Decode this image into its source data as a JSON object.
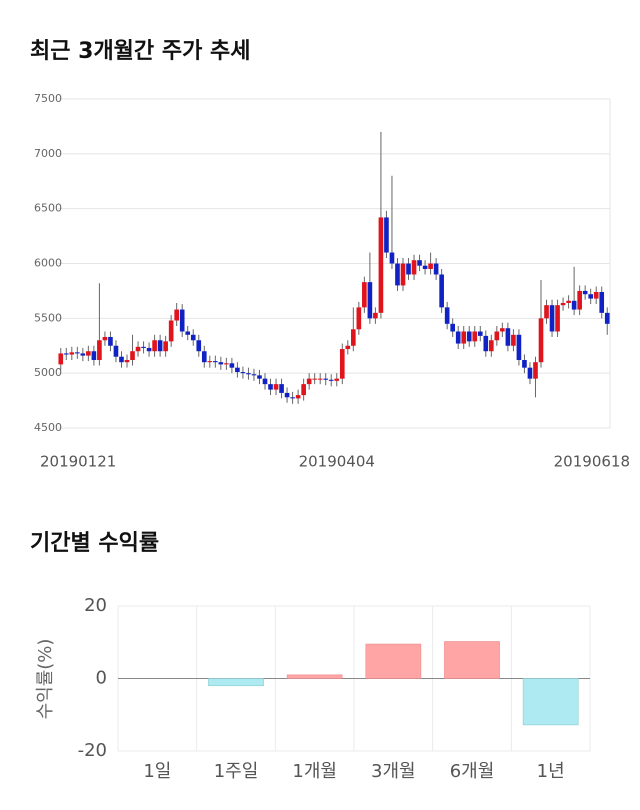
{
  "chart_data": [
    {
      "type": "candlestick",
      "title": "최근 3개월간 주가 추세",
      "categories": [
        "20190121",
        null,
        null,
        null,
        null,
        null,
        null,
        null,
        null,
        null,
        null,
        null,
        null,
        null,
        null,
        null,
        null,
        null,
        null,
        null,
        null,
        null,
        null,
        null,
        null,
        null,
        null,
        null,
        null,
        null,
        null,
        null,
        null,
        null,
        null,
        null,
        null,
        null,
        null,
        null,
        null,
        null,
        null,
        null,
        null,
        null,
        null,
        null,
        null,
        null,
        "20190404",
        null,
        null,
        null,
        null,
        null,
        null,
        null,
        null,
        null,
        null,
        null,
        null,
        null,
        null,
        null,
        null,
        null,
        null,
        null,
        null,
        null,
        null,
        null,
        null,
        null,
        null,
        null,
        null,
        null,
        null,
        null,
        null,
        null,
        null,
        null,
        null,
        null,
        null,
        null,
        null,
        null,
        null,
        null,
        null,
        null,
        null,
        null,
        null,
        "20190618"
      ],
      "open": [
        5080,
        5180,
        5170,
        5190,
        5180,
        5160,
        5200,
        5120,
        5300,
        5330,
        5250,
        5150,
        5100,
        5120,
        5200,
        5240,
        5230,
        5200,
        5300,
        5200,
        5290,
        5480,
        5580,
        5380,
        5350,
        5300,
        5200,
        5100,
        5110,
        5100,
        5080,
        5090,
        5050,
        5010,
        5000,
        4990,
        4980,
        4950,
        4900,
        4850,
        4900,
        4820,
        4780,
        4770,
        4800,
        4900,
        4950,
        4950,
        4950,
        4940,
        4930,
        4950,
        5220,
        5250,
        5400,
        5600,
        5830,
        5500,
        5550,
        6420,
        6100,
        6000,
        5800,
        6000,
        5900,
        6030,
        5980,
        5950,
        6000,
        5900,
        5600,
        5450,
        5380,
        5270,
        5380,
        5290,
        5380,
        5340,
        5200,
        5300,
        5380,
        5410,
        5250,
        5350,
        5120,
        5050,
        4950,
        5100,
        5500,
        5620,
        5380,
        5620,
        5640,
        5660,
        5580,
        5750,
        5720,
        5680,
        5740,
        5550
      ],
      "high": [
        5230,
        5230,
        5240,
        5240,
        5230,
        5250,
        5250,
        5820,
        5380,
        5380,
        5300,
        5200,
        5170,
        5350,
        5290,
        5290,
        5280,
        5350,
        5350,
        5340,
        5530,
        5640,
        5630,
        5430,
        5400,
        5350,
        5250,
        5160,
        5160,
        5150,
        5140,
        5140,
        5100,
        5060,
        5050,
        5040,
        5030,
        5000,
        4950,
        4950,
        4950,
        4870,
        4830,
        4850,
        4950,
        5000,
        5000,
        5000,
        5000,
        4990,
        5000,
        5270,
        5300,
        5600,
        5650,
        5880,
        6100,
        5600,
        7200,
        6480,
        6800,
        6050,
        6050,
        6050,
        6080,
        6080,
        6030,
        6100,
        6050,
        5950,
        5650,
        5500,
        5430,
        5430,
        5430,
        5430,
        5430,
        5390,
        5350,
        5430,
        5460,
        5460,
        5400,
        5400,
        5170,
        5100,
        5150,
        5850,
        5670,
        5670,
        5670,
        5690,
        5710,
        5970,
        5800,
        5800,
        5770,
        5790,
        5790,
        5600
      ],
      "low": [
        5030,
        5120,
        5120,
        5130,
        5110,
        5110,
        5070,
        5070,
        5250,
        5200,
        5100,
        5050,
        5050,
        5070,
        5150,
        5180,
        5150,
        5150,
        5150,
        5150,
        5240,
        5430,
        5330,
        5300,
        5250,
        5150,
        5050,
        5050,
        5050,
        5030,
        5030,
        5000,
        4960,
        4950,
        4940,
        4930,
        4900,
        4850,
        4800,
        4800,
        4770,
        4730,
        4720,
        4720,
        4750,
        4850,
        4900,
        4900,
        4890,
        4880,
        4880,
        4900,
        5170,
        5200,
        5350,
        5550,
        5450,
        5450,
        5500,
        6050,
        5950,
        5750,
        5750,
        5850,
        5850,
        5930,
        5900,
        5900,
        5850,
        5550,
        5400,
        5330,
        5220,
        5220,
        5240,
        5240,
        5290,
        5150,
        5150,
        5250,
        5330,
        5200,
        5200,
        5070,
        5000,
        4900,
        4780,
        5050,
        5450,
        5330,
        5330,
        5570,
        5590,
        5530,
        5530,
        5670,
        5630,
        5630,
        5500,
        5350
      ],
      "close": [
        5180,
        5170,
        5190,
        5180,
        5160,
        5200,
        5120,
        5300,
        5330,
        5250,
        5150,
        5100,
        5120,
        5200,
        5240,
        5230,
        5200,
        5300,
        5200,
        5290,
        5480,
        5580,
        5380,
        5350,
        5300,
        5200,
        5100,
        5110,
        5100,
        5080,
        5090,
        5050,
        5010,
        5000,
        4990,
        4980,
        4950,
        4900,
        4850,
        4900,
        4820,
        4780,
        4770,
        4800,
        4900,
        4950,
        4950,
        4950,
        4940,
        4930,
        4950,
        5220,
        5250,
        5400,
        5600,
        5830,
        5500,
        5550,
        6420,
        6100,
        6000,
        5800,
        6000,
        5900,
        6030,
        5980,
        5950,
        6000,
        5900,
        5600,
        5450,
        5380,
        5270,
        5380,
        5290,
        5380,
        5340,
        5200,
        5300,
        5380,
        5410,
        5250,
        5350,
        5120,
        5050,
        4950,
        5100,
        5500,
        5620,
        5380,
        5620,
        5640,
        5660,
        5580,
        5750,
        5720,
        5680,
        5740,
        5550,
        5450
      ],
      "up_color": "#e0141c",
      "down_color": "#1022c4",
      "ylim": [
        4500,
        7500
      ],
      "yticks": [
        4500,
        5000,
        5500,
        6000,
        6500,
        7000,
        7500
      ],
      "grid": true
    },
    {
      "type": "bar",
      "title": "기간별 수익률",
      "ylabel": "수익률(%)",
      "categories": [
        "1일",
        "1주일",
        "1개월",
        "3개월",
        "6개월",
        "1년"
      ],
      "values": [
        0,
        -2,
        1,
        9.5,
        10.2,
        -12.8
      ],
      "positive_color": "#ffa5a5",
      "negative_color": "#aeeaf2",
      "ylim": [
        -20,
        20
      ],
      "yticks": [
        -20,
        0,
        20
      ],
      "grid": true
    }
  ]
}
